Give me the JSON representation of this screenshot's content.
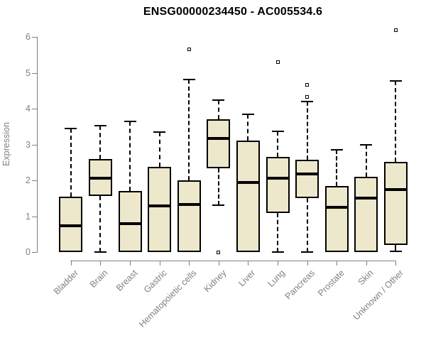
{
  "title": "ENSG00000234450 - AC005534.6",
  "colors": {
    "box_fill": "#EDE7CB",
    "box_border": "#000000",
    "median": "#000000",
    "axis": "#808080",
    "label_text": "#808080",
    "title_text": "#000000",
    "background": "#ffffff"
  },
  "chart_data": {
    "type": "boxplot",
    "title": "ENSG00000234450 - AC005534.6",
    "xlabel": "",
    "ylabel": "Expression",
    "ylim": [
      0,
      6
    ],
    "yticks": [
      0,
      1,
      2,
      3,
      4,
      5,
      6
    ],
    "grid": false,
    "legend": false,
    "categories": [
      "Bladder",
      "Brain",
      "Breast",
      "Gastric",
      "Hematopoietic cells",
      "Kidney",
      "Liver",
      "Lung",
      "Pancreas",
      "Prostate",
      "Skin",
      "Unknown / Other"
    ],
    "series": [
      {
        "name": "Bladder",
        "whisker_low": 0,
        "q1": 0,
        "median": 0.74,
        "q3": 1.55,
        "whisker_high": 3.45,
        "outliers": []
      },
      {
        "name": "Brain",
        "whisker_low": 0,
        "q1": 1.57,
        "median": 2.05,
        "q3": 2.6,
        "whisker_high": 3.52,
        "outliers": []
      },
      {
        "name": "Breast",
        "whisker_low": 0,
        "q1": 0,
        "median": 0.8,
        "q3": 1.7,
        "whisker_high": 3.65,
        "outliers": []
      },
      {
        "name": "Gastric",
        "whisker_low": 0,
        "q1": 0,
        "median": 1.28,
        "q3": 2.37,
        "whisker_high": 3.35,
        "outliers": []
      },
      {
        "name": "Hematopoietic cells",
        "whisker_low": 0,
        "q1": 0,
        "median": 1.33,
        "q3": 2.0,
        "whisker_high": 4.82,
        "outliers": [
          5.65
        ]
      },
      {
        "name": "Kidney",
        "whisker_low": 1.3,
        "q1": 2.34,
        "median": 3.17,
        "q3": 3.7,
        "whisker_high": 4.23,
        "outliers": [
          0
        ]
      },
      {
        "name": "Liver",
        "whisker_low": 0,
        "q1": 0,
        "median": 1.95,
        "q3": 3.1,
        "whisker_high": 3.85,
        "outliers": []
      },
      {
        "name": "Lung",
        "whisker_low": 0,
        "q1": 1.08,
        "median": 2.05,
        "q3": 2.65,
        "whisker_high": 3.36,
        "outliers": [
          5.3
        ]
      },
      {
        "name": "Pancreas",
        "whisker_low": 0,
        "q1": 1.5,
        "median": 2.17,
        "q3": 2.58,
        "whisker_high": 4.2,
        "outliers": [
          4.66,
          4.33
        ]
      },
      {
        "name": "Prostate",
        "whisker_low": 0,
        "q1": 0,
        "median": 1.25,
        "q3": 1.85,
        "whisker_high": 2.85,
        "outliers": []
      },
      {
        "name": "Skin",
        "whisker_low": 0,
        "q1": 0,
        "median": 1.5,
        "q3": 2.1,
        "whisker_high": 3.0,
        "outliers": []
      },
      {
        "name": "Unknown / Other",
        "whisker_low": 0.02,
        "q1": 0.2,
        "median": 1.75,
        "q3": 2.52,
        "whisker_high": 4.78,
        "outliers": [
          6.18
        ]
      }
    ]
  }
}
